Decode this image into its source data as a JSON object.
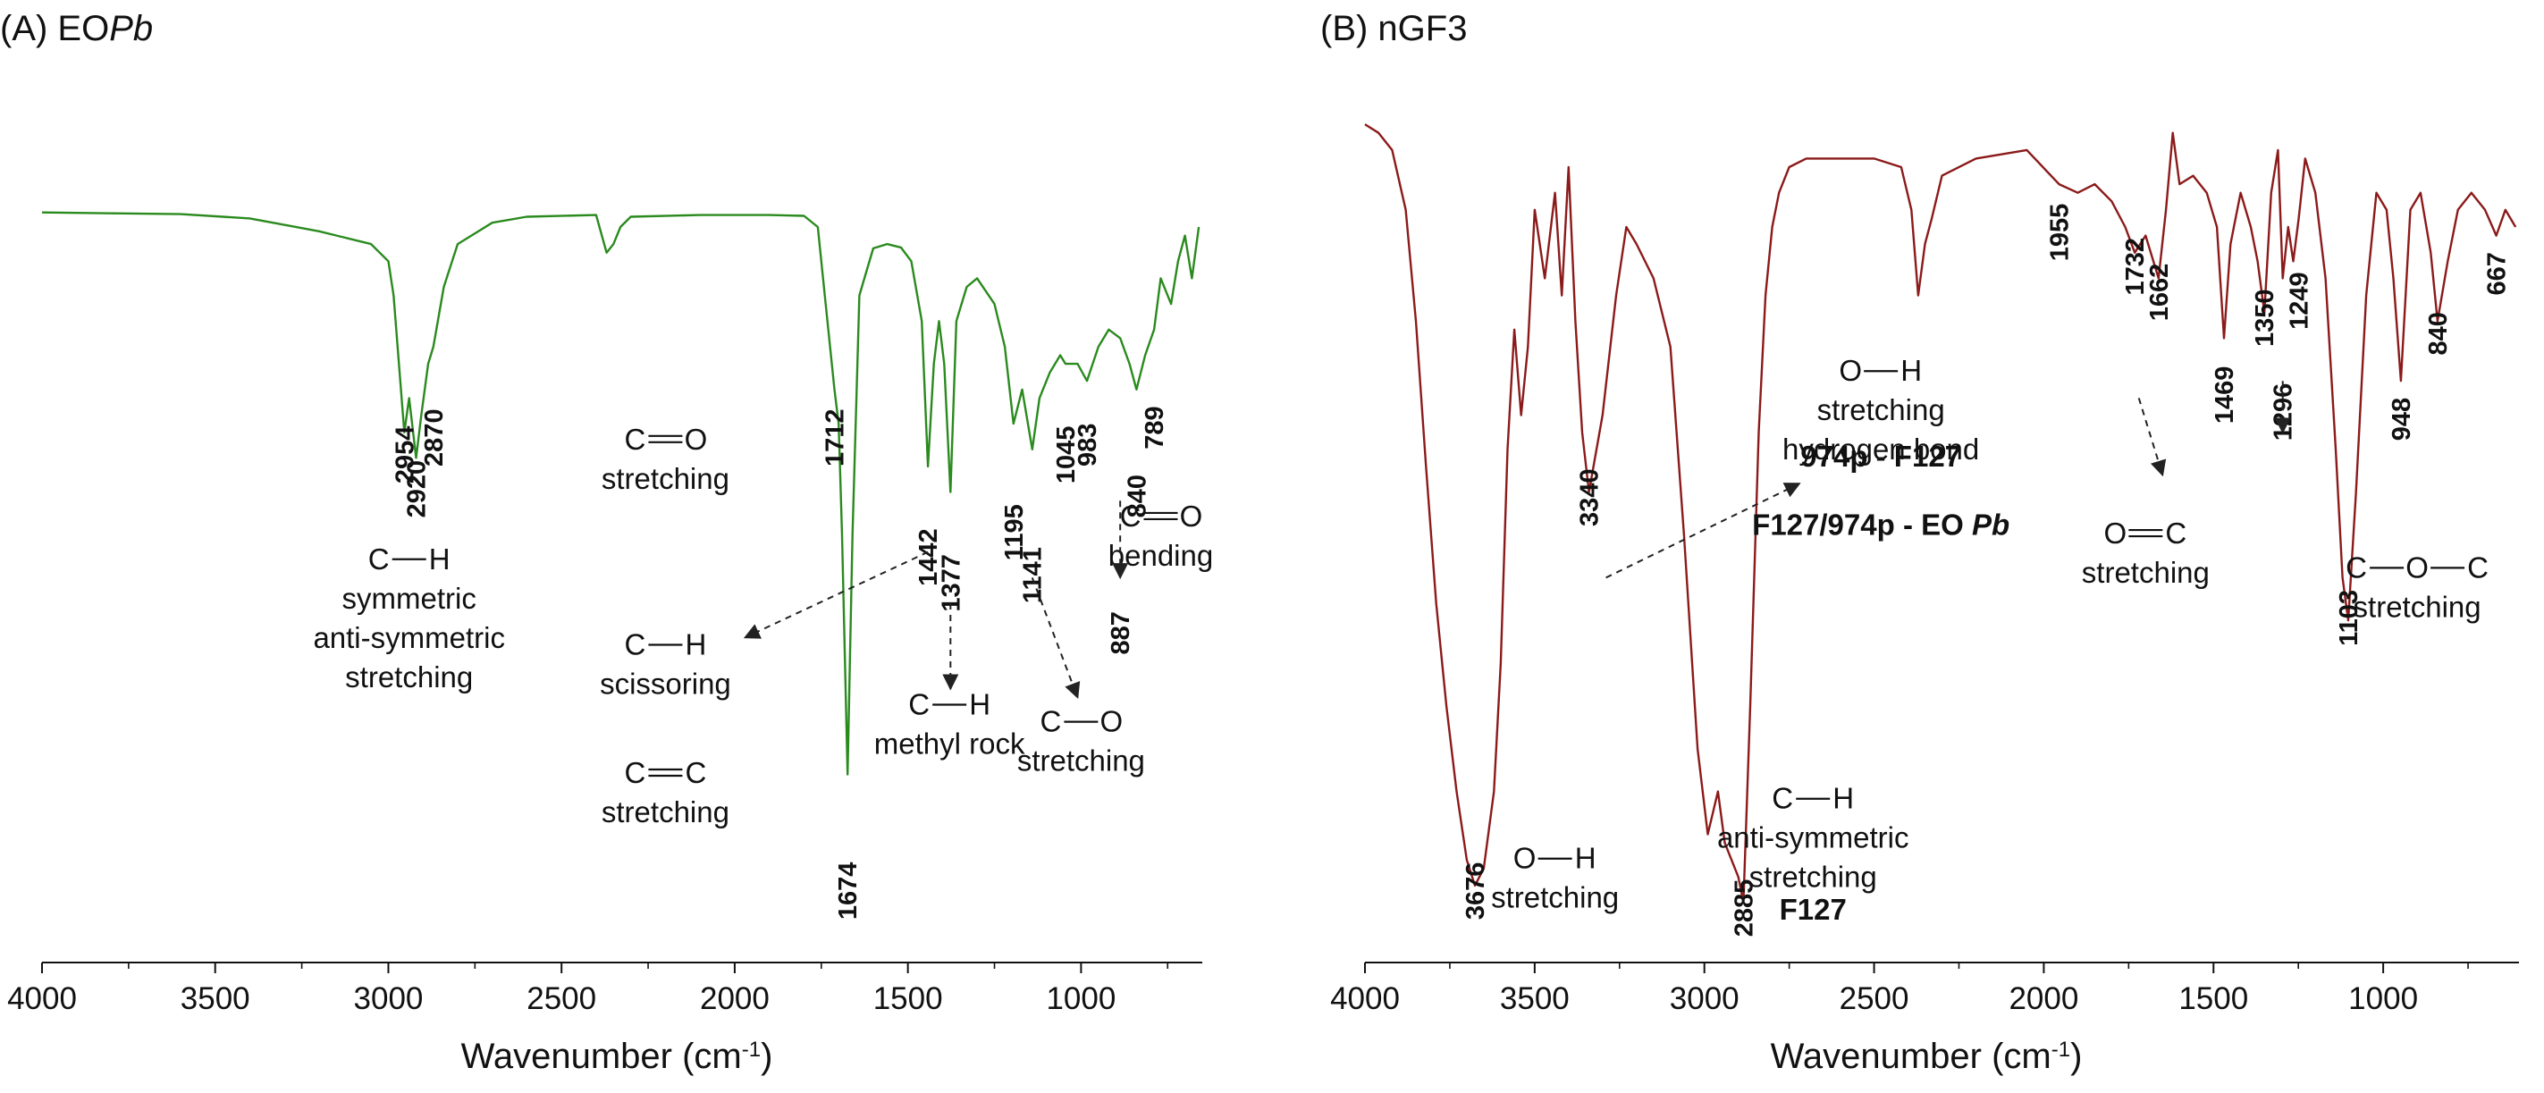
{
  "chart_data": [
    {
      "type": "line",
      "panel_title_prefix": "(A) EO",
      "panel_title_italic": "Pb",
      "xlabel_main": "Wavenumber (cm",
      "xlabel_sup": "-1",
      "xlabel_close": ")",
      "x_range": [
        4000,
        650
      ],
      "x_reversed": true,
      "x_ticks": [
        4000,
        3500,
        3000,
        2500,
        2000,
        1500,
        1000
      ],
      "series_color": "#2a8a1e",
      "ylim": [
        0,
        1
      ],
      "y_axis_shown": false,
      "series": [
        {
          "name": "EOPb",
          "x": [
            4000,
            3800,
            3600,
            3400,
            3200,
            3100,
            3050,
            3000,
            2985,
            2954,
            2940,
            2920,
            2905,
            2885,
            2870,
            2840,
            2800,
            2700,
            2600,
            2400,
            2370,
            2350,
            2330,
            2300,
            2100,
            1900,
            1800,
            1760,
            1740,
            1712,
            1700,
            1690,
            1674,
            1660,
            1640,
            1600,
            1560,
            1520,
            1490,
            1460,
            1442,
            1425,
            1410,
            1395,
            1377,
            1360,
            1330,
            1300,
            1250,
            1220,
            1195,
            1170,
            1141,
            1120,
            1090,
            1060,
            1045,
            1010,
            983,
            950,
            920,
            887,
            860,
            840,
            815,
            789,
            770,
            740,
            720,
            700,
            680,
            660
          ],
          "y": [
            0.877,
            0.876,
            0.875,
            0.87,
            0.855,
            0.845,
            0.84,
            0.82,
            0.78,
            0.62,
            0.66,
            0.59,
            0.64,
            0.7,
            0.72,
            0.79,
            0.84,
            0.865,
            0.872,
            0.874,
            0.83,
            0.84,
            0.86,
            0.872,
            0.874,
            0.874,
            0.873,
            0.86,
            0.78,
            0.67,
            0.63,
            0.5,
            0.22,
            0.5,
            0.78,
            0.835,
            0.84,
            0.836,
            0.82,
            0.75,
            0.58,
            0.7,
            0.75,
            0.7,
            0.55,
            0.75,
            0.79,
            0.8,
            0.77,
            0.72,
            0.63,
            0.67,
            0.6,
            0.66,
            0.69,
            0.71,
            0.7,
            0.7,
            0.68,
            0.72,
            0.74,
            0.73,
            0.7,
            0.67,
            0.71,
            0.74,
            0.8,
            0.77,
            0.82,
            0.85,
            0.8,
            0.86
          ]
        }
      ],
      "peak_labels": [
        {
          "x": 2954,
          "text": "2954",
          "y": 0.56
        },
        {
          "x": 2920,
          "text": "2920",
          "y": 0.52
        },
        {
          "x": 2870,
          "text": "2870",
          "y": 0.58
        },
        {
          "x": 1712,
          "text": "1712",
          "y": 0.58
        },
        {
          "x": 1674,
          "text": "1674",
          "y": 0.05
        },
        {
          "x": 1442,
          "text": "1442",
          "y": 0.44
        },
        {
          "x": 1377,
          "text": "1377",
          "y": 0.41
        },
        {
          "x": 1195,
          "text": "1195",
          "y": 0.47
        },
        {
          "x": 1141,
          "text": "1141",
          "y": 0.42
        },
        {
          "x": 1045,
          "text": "1045",
          "y": 0.56
        },
        {
          "x": 983,
          "text": "983",
          "y": 0.58
        },
        {
          "x": 887,
          "text": "887",
          "y": 0.36
        },
        {
          "x": 840,
          "text": "840",
          "y": 0.52
        },
        {
          "x": 789,
          "text": "789",
          "y": 0.6
        }
      ],
      "annotations": [
        {
          "bond": "C—H",
          "lines": [
            "symmetric",
            "anti-symmetric",
            "stretching"
          ],
          "x": 2940,
          "y": 0.46
        },
        {
          "bond": "C═O",
          "lines": [
            "stretching"
          ],
          "x": 2200,
          "y": 0.6
        },
        {
          "bond": "C—H",
          "lines": [
            "scissoring"
          ],
          "x": 2200,
          "y": 0.36
        },
        {
          "bond": "C═C",
          "lines": [
            "stretching"
          ],
          "x": 2200,
          "y": 0.21
        },
        {
          "bond": "C—H",
          "lines": [
            "methyl rock"
          ],
          "x": 1380,
          "y": 0.29
        },
        {
          "bond": "C—O",
          "lines": [
            "stretching"
          ],
          "x": 1000,
          "y": 0.27
        },
        {
          "bond": "C═O",
          "lines": [
            "bending"
          ],
          "x": 770,
          "y": 0.51
        }
      ],
      "arrows": [
        {
          "from_x": 1442,
          "from_y": 0.48,
          "to_x": 1970,
          "to_y": 0.38
        },
        {
          "from_x": 1377,
          "from_y": 0.42,
          "to_x": 1377,
          "to_y": 0.32
        },
        {
          "from_x": 1141,
          "from_y": 0.45,
          "to_x": 1010,
          "to_y": 0.31
        },
        {
          "from_x": 887,
          "from_y": 0.54,
          "to_x": 887,
          "to_y": 0.45
        }
      ]
    },
    {
      "type": "line",
      "panel_title": "(B) nGF3",
      "xlabel_main": "Wavenumber (cm",
      "xlabel_sup": "-1",
      "xlabel_close": ")",
      "x_range": [
        4000,
        600
      ],
      "x_reversed": true,
      "x_ticks": [
        4000,
        3500,
        3000,
        2500,
        2000,
        1500,
        1000
      ],
      "series_color": "#8b1a1a",
      "ylim": [
        0,
        1
      ],
      "y_axis_shown": false,
      "series": [
        {
          "name": "nGF3",
          "x": [
            4000,
            3960,
            3920,
            3880,
            3850,
            3820,
            3790,
            3760,
            3730,
            3700,
            3676,
            3650,
            3620,
            3600,
            3580,
            3560,
            3540,
            3520,
            3500,
            3470,
            3440,
            3420,
            3400,
            3380,
            3360,
            3340,
            3300,
            3260,
            3230,
            3200,
            3150,
            3100,
            3060,
            3020,
            2990,
            2960,
            2940,
            2920,
            2900,
            2885,
            2865,
            2840,
            2820,
            2800,
            2780,
            2750,
            2700,
            2600,
            2500,
            2420,
            2390,
            2370,
            2350,
            2330,
            2300,
            2200,
            2050,
            1955,
            1900,
            1850,
            1800,
            1760,
            1732,
            1700,
            1662,
            1640,
            1620,
            1600,
            1560,
            1520,
            1490,
            1469,
            1450,
            1420,
            1390,
            1370,
            1350,
            1330,
            1310,
            1296,
            1280,
            1265,
            1249,
            1230,
            1200,
            1170,
            1140,
            1120,
            1103,
            1080,
            1050,
            1020,
            990,
            970,
            948,
            920,
            890,
            860,
            840,
            810,
            780,
            740,
            700,
            667,
            640,
            610
          ],
          "y": [
            0.98,
            0.97,
            0.95,
            0.88,
            0.75,
            0.58,
            0.42,
            0.3,
            0.2,
            0.12,
            0.09,
            0.11,
            0.2,
            0.35,
            0.6,
            0.74,
            0.64,
            0.72,
            0.88,
            0.8,
            0.9,
            0.78,
            0.93,
            0.75,
            0.62,
            0.55,
            0.64,
            0.78,
            0.86,
            0.84,
            0.8,
            0.72,
            0.5,
            0.25,
            0.15,
            0.2,
            0.14,
            0.12,
            0.1,
            0.07,
            0.3,
            0.62,
            0.78,
            0.86,
            0.9,
            0.93,
            0.94,
            0.94,
            0.94,
            0.93,
            0.88,
            0.78,
            0.84,
            0.87,
            0.92,
            0.94,
            0.95,
            0.91,
            0.9,
            0.91,
            0.89,
            0.86,
            0.83,
            0.85,
            0.8,
            0.88,
            0.97,
            0.91,
            0.92,
            0.9,
            0.86,
            0.73,
            0.84,
            0.9,
            0.86,
            0.82,
            0.76,
            0.9,
            0.95,
            0.8,
            0.86,
            0.82,
            0.87,
            0.94,
            0.9,
            0.8,
            0.6,
            0.45,
            0.4,
            0.55,
            0.78,
            0.9,
            0.88,
            0.8,
            0.68,
            0.88,
            0.9,
            0.83,
            0.75,
            0.82,
            0.88,
            0.9,
            0.88,
            0.85,
            0.88,
            0.86
          ]
        }
      ],
      "peak_labels": [
        {
          "x": 3676,
          "text": "3676",
          "y": 0.05
        },
        {
          "x": 3340,
          "text": "3340",
          "y": 0.51
        },
        {
          "x": 2885,
          "text": "2885",
          "y": 0.03
        },
        {
          "x": 1955,
          "text": "1955",
          "y": 0.82
        },
        {
          "x": 1732,
          "text": "1732",
          "y": 0.78
        },
        {
          "x": 1662,
          "text": "1662",
          "y": 0.75
        },
        {
          "x": 1469,
          "text": "1469",
          "y": 0.63
        },
        {
          "x": 1350,
          "text": "1350",
          "y": 0.72
        },
        {
          "x": 1296,
          "text": "1296",
          "y": 0.61
        },
        {
          "x": 1249,
          "text": "1249",
          "y": 0.74
        },
        {
          "x": 1103,
          "text": "1103",
          "y": 0.37
        },
        {
          "x": 948,
          "text": "948",
          "y": 0.61
        },
        {
          "x": 840,
          "text": "840",
          "y": 0.71
        },
        {
          "x": 667,
          "text": "667",
          "y": 0.78
        }
      ],
      "annotations": [
        {
          "bond": "O—H",
          "lines": [
            "stretching"
          ],
          "x": 3440,
          "y": 0.11
        },
        {
          "bond": "C—H",
          "lines": [
            "anti-symmetric",
            "stretching"
          ],
          "x": 2680,
          "y": 0.18
        },
        {
          "bond": "O—H",
          "lines": [
            "stretching",
            "hydrogen bond"
          ],
          "x": 2480,
          "y": 0.68
        },
        {
          "bond": "O═C",
          "lines": [
            "stretching"
          ],
          "x": 1700,
          "y": 0.49
        },
        {
          "bond": "C—O—C",
          "lines": [
            "stretching"
          ],
          "x": 900,
          "y": 0.45
        }
      ],
      "bold_notes": [
        {
          "text": "F127",
          "x": 2680,
          "y": 0.05
        },
        {
          "text": "974p - F127",
          "x": 2480,
          "y": 0.58
        },
        {
          "text": "F127/974p - EO ",
          "italic_suffix": "Pb",
          "x": 2480,
          "y": 0.5
        }
      ],
      "arrows": [
        {
          "from_x": 3290,
          "from_y": 0.45,
          "to_x": 2720,
          "to_y": 0.56
        },
        {
          "from_x": 1720,
          "from_y": 0.66,
          "to_x": 1650,
          "to_y": 0.57
        },
        {
          "from_x": 1296,
          "from_y": 0.68,
          "to_x": 1296,
          "to_y": 0.62
        }
      ]
    }
  ]
}
